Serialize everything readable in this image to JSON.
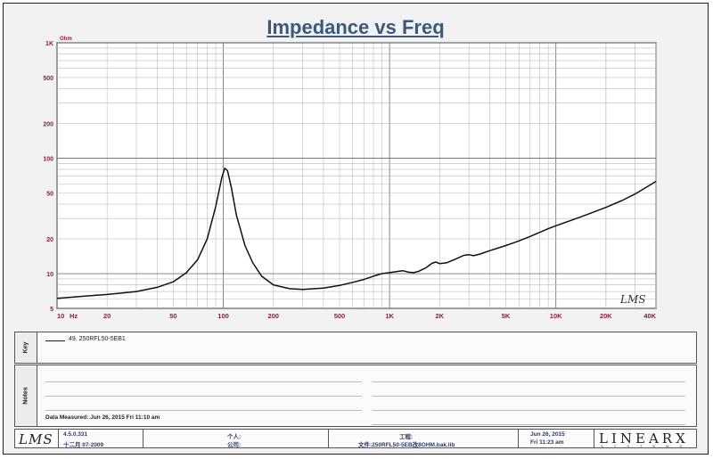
{
  "chart_data": {
    "type": "line",
    "title": "Impedance vs Freq",
    "y_unit_label": "Ohm",
    "x_unit_label": "Hz",
    "x_scale": "log",
    "y_scale": "log",
    "xlim": [
      10,
      40000
    ],
    "ylim": [
      5,
      1000
    ],
    "grid": true,
    "x_tick_labels": [
      {
        "value": 10,
        "label": "10"
      },
      {
        "value": 20,
        "label": "20"
      },
      {
        "value": 50,
        "label": "50"
      },
      {
        "value": 100,
        "label": "100"
      },
      {
        "value": 200,
        "label": "200"
      },
      {
        "value": 500,
        "label": "500"
      },
      {
        "value": 1000,
        "label": "1K"
      },
      {
        "value": 2000,
        "label": "2K"
      },
      {
        "value": 5000,
        "label": "5K"
      },
      {
        "value": 10000,
        "label": "10K"
      },
      {
        "value": 20000,
        "label": "20K"
      },
      {
        "value": 40000,
        "label": "40K"
      }
    ],
    "y_tick_labels": [
      {
        "value": 5,
        "label": "5"
      },
      {
        "value": 10,
        "label": "10"
      },
      {
        "value": 20,
        "label": "20"
      },
      {
        "value": 50,
        "label": "50"
      },
      {
        "value": 100,
        "label": "100"
      },
      {
        "value": 200,
        "label": "200"
      },
      {
        "value": 500,
        "label": "500"
      },
      {
        "value": 1000,
        "label": "1K"
      }
    ],
    "series": [
      {
        "name": "49. 250RFL50-5EB1",
        "points": [
          [
            10,
            6.1
          ],
          [
            15,
            6.4
          ],
          [
            20,
            6.6
          ],
          [
            30,
            7.0
          ],
          [
            40,
            7.6
          ],
          [
            50,
            8.5
          ],
          [
            60,
            10.2
          ],
          [
            70,
            13.2
          ],
          [
            80,
            20
          ],
          [
            90,
            38
          ],
          [
            98,
            68
          ],
          [
            102,
            82
          ],
          [
            106,
            78
          ],
          [
            112,
            55
          ],
          [
            120,
            32
          ],
          [
            135,
            17.5
          ],
          [
            150,
            12.5
          ],
          [
            170,
            9.5
          ],
          [
            200,
            8.0
          ],
          [
            250,
            7.4
          ],
          [
            300,
            7.3
          ],
          [
            400,
            7.5
          ],
          [
            500,
            7.9
          ],
          [
            600,
            8.4
          ],
          [
            700,
            8.9
          ],
          [
            800,
            9.5
          ],
          [
            900,
            10.0
          ],
          [
            1000,
            10.2
          ],
          [
            1100,
            10.4
          ],
          [
            1200,
            10.6
          ],
          [
            1300,
            10.3
          ],
          [
            1400,
            10.2
          ],
          [
            1500,
            10.5
          ],
          [
            1650,
            11.2
          ],
          [
            1800,
            12.3
          ],
          [
            1900,
            12.6
          ],
          [
            2000,
            12.2
          ],
          [
            2200,
            12.4
          ],
          [
            2500,
            13.4
          ],
          [
            2800,
            14.4
          ],
          [
            3000,
            14.6
          ],
          [
            3200,
            14.3
          ],
          [
            3500,
            14.8
          ],
          [
            4000,
            15.8
          ],
          [
            5000,
            17.5
          ],
          [
            6000,
            19.2
          ],
          [
            7000,
            21
          ],
          [
            8000,
            22.8
          ],
          [
            9000,
            24.5
          ],
          [
            10000,
            26
          ],
          [
            12000,
            28.5
          ],
          [
            15000,
            32
          ],
          [
            20000,
            37.5
          ],
          [
            25000,
            43
          ],
          [
            30000,
            49
          ],
          [
            35000,
            56
          ],
          [
            40000,
            63
          ]
        ]
      }
    ],
    "watermark_logo": "LMS"
  },
  "legend": {
    "side_label": "Key",
    "entry": "49. 250RFL50-5EB1"
  },
  "notes": {
    "side_label": "Notes",
    "measured": "Data Measured: Jun 26, 2015 Fri 11:10 am"
  },
  "footer": {
    "logo": "LMS",
    "version": "4.5.0.331",
    "version_date": "十二月 07-2009",
    "user_label": "个人:",
    "company_label": "公司:",
    "project_label": "工程:",
    "file_label": "文件:250RFL50-5EB改8OHM.bak.lib",
    "date": "Jun 26, 2015",
    "time": "Fri 11:23 am",
    "brand": "LINEARX",
    "brand_sub": "SYSTEMS"
  }
}
